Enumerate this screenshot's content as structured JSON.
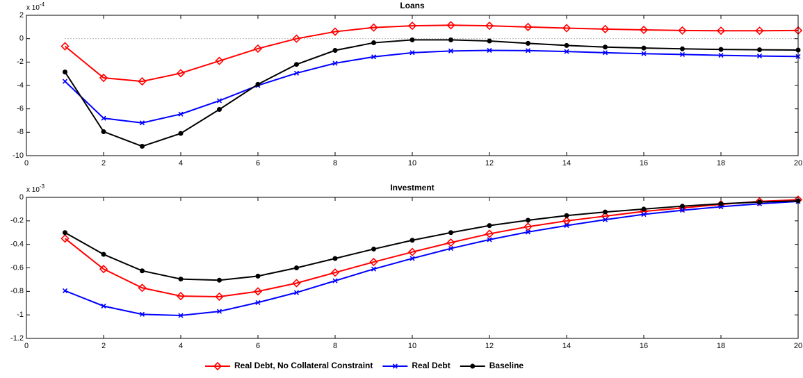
{
  "chart_data": [
    {
      "type": "line",
      "title": "Loans",
      "y_scale_label": {
        "base": "x 10",
        "exponent": "-4"
      },
      "x": [
        1,
        2,
        3,
        4,
        5,
        6,
        7,
        8,
        9,
        10,
        11,
        12,
        13,
        14,
        15,
        16,
        17,
        18,
        19,
        20
      ],
      "xlim": [
        0,
        20
      ],
      "xticks": [
        0,
        2,
        4,
        6,
        8,
        10,
        12,
        14,
        16,
        18,
        20
      ],
      "ylim": [
        -10,
        2
      ],
      "yticks": [
        -10,
        -8,
        -6,
        -4,
        -2,
        0,
        2
      ],
      "zero_line": true,
      "series": [
        {
          "name": "Real Debt, No Collateral Constraint",
          "color": "#ff0000",
          "marker": "diamond",
          "values": [
            -0.65,
            -3.35,
            -3.65,
            -2.95,
            -1.9,
            -0.85,
            0.0,
            0.6,
            0.95,
            1.1,
            1.15,
            1.1,
            1.0,
            0.9,
            0.82,
            0.75,
            0.7,
            0.68,
            0.68,
            0.7
          ]
        },
        {
          "name": "Real Debt",
          "color": "#0000ff",
          "marker": "x",
          "values": [
            -3.65,
            -6.8,
            -7.2,
            -6.45,
            -5.3,
            -4.0,
            -2.95,
            -2.1,
            -1.55,
            -1.2,
            -1.05,
            -1.0,
            -1.02,
            -1.1,
            -1.2,
            -1.28,
            -1.35,
            -1.42,
            -1.48,
            -1.52
          ]
        },
        {
          "name": "Baseline",
          "color": "#000000",
          "marker": "dot",
          "values": [
            -2.85,
            -7.95,
            -9.2,
            -8.1,
            -6.05,
            -3.9,
            -2.2,
            -1.0,
            -0.35,
            -0.1,
            -0.1,
            -0.2,
            -0.4,
            -0.58,
            -0.72,
            -0.8,
            -0.87,
            -0.92,
            -0.95,
            -0.97
          ]
        }
      ]
    },
    {
      "type": "line",
      "title": "Investment",
      "y_scale_label": {
        "base": "x 10",
        "exponent": "-3"
      },
      "x": [
        1,
        2,
        3,
        4,
        5,
        6,
        7,
        8,
        9,
        10,
        11,
        12,
        13,
        14,
        15,
        16,
        17,
        18,
        19,
        20
      ],
      "xlim": [
        0,
        20
      ],
      "xticks": [
        0,
        2,
        4,
        6,
        8,
        10,
        12,
        14,
        16,
        18,
        20
      ],
      "ylim": [
        -1.2,
        0
      ],
      "yticks": [
        -1.2,
        -1,
        -0.8,
        -0.6,
        -0.4,
        -0.2,
        0
      ],
      "zero_line": false,
      "series": [
        {
          "color": "#ff0000",
          "marker": "diamond",
          "values": [
            -0.35,
            -0.61,
            -0.77,
            -0.84,
            -0.845,
            -0.8,
            -0.73,
            -0.64,
            -0.55,
            -0.465,
            -0.385,
            -0.31,
            -0.25,
            -0.2,
            -0.16,
            -0.12,
            -0.09,
            -0.06,
            -0.035,
            -0.02
          ]
        },
        {
          "color": "#0000ff",
          "marker": "x",
          "values": [
            -0.795,
            -0.925,
            -0.995,
            -1.005,
            -0.97,
            -0.895,
            -0.81,
            -0.71,
            -0.61,
            -0.52,
            -0.435,
            -0.36,
            -0.295,
            -0.24,
            -0.19,
            -0.145,
            -0.11,
            -0.08,
            -0.055,
            -0.035
          ]
        },
        {
          "color": "#000000",
          "marker": "dot",
          "values": [
            -0.3,
            -0.485,
            -0.625,
            -0.695,
            -0.705,
            -0.67,
            -0.6,
            -0.52,
            -0.44,
            -0.365,
            -0.3,
            -0.24,
            -0.195,
            -0.155,
            -0.125,
            -0.1,
            -0.075,
            -0.055,
            -0.04,
            -0.03
          ]
        }
      ]
    }
  ]
}
